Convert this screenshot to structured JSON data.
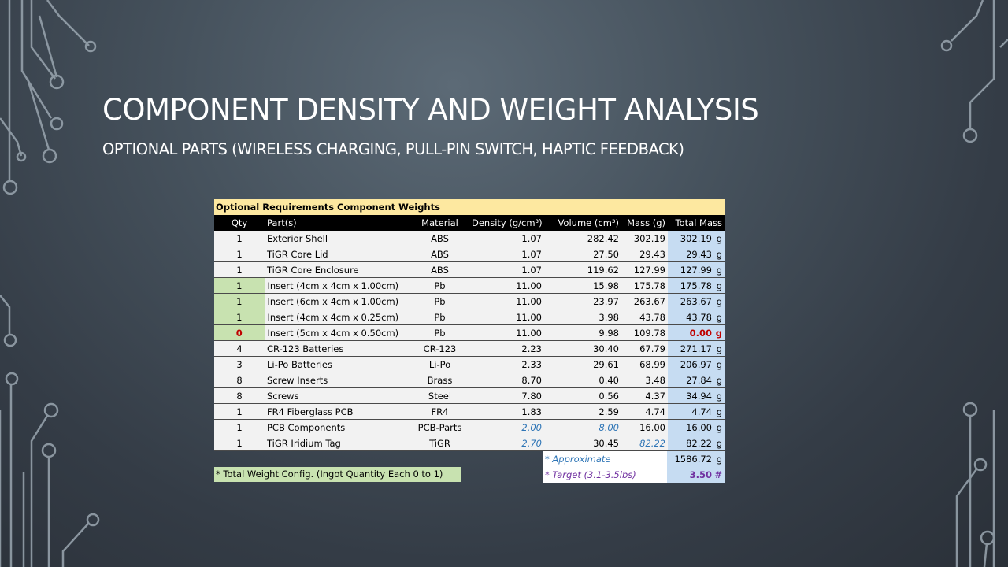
{
  "slide": {
    "title": "COMPONENT DENSITY AND WEIGHT ANALYSIS",
    "subtitle": "OPTIONAL PARTS (WIRELESS CHARGING, PULL-PIN SWITCH, HAPTIC FEEDBACK)"
  },
  "sheet": {
    "caption": "Optional Requirements Component Weights",
    "headers": [
      "Qty",
      "Part(s)",
      "Material",
      "Density (g/cm³)",
      "Volume (cm³)",
      "Mass (g)",
      "Total Mass"
    ],
    "rows": [
      {
        "qty": "1",
        "part": "Exterior Shell",
        "material": "ABS",
        "density": "1.07",
        "volume": "282.42",
        "mass": "302.19",
        "total": "302.19",
        "unit": "g"
      },
      {
        "qty": "1",
        "part": "TiGR Core Lid",
        "material": "ABS",
        "density": "1.07",
        "volume": "27.50",
        "mass": "29.43",
        "total": "29.43",
        "unit": "g"
      },
      {
        "qty": "1",
        "part": "TiGR Core Enclosure",
        "material": "ABS",
        "density": "1.07",
        "volume": "119.62",
        "mass": "127.99",
        "total": "127.99",
        "unit": "g"
      },
      {
        "qty": "1",
        "part": "Insert (4cm x 4cm  x 1.00cm)",
        "material": "Pb",
        "density": "11.00",
        "volume": "15.98",
        "mass": "175.78",
        "total": "175.78",
        "unit": "g"
      },
      {
        "qty": "1",
        "part": "Insert (6cm x 4cm  x 1.00cm)",
        "material": "Pb",
        "density": "11.00",
        "volume": "23.97",
        "mass": "263.67",
        "total": "263.67",
        "unit": "g"
      },
      {
        "qty": "1",
        "part": "Insert (4cm x 4cm  x 0.25cm)",
        "material": "Pb",
        "density": "11.00",
        "volume": "3.98",
        "mass": "43.78",
        "total": "43.78",
        "unit": "g"
      },
      {
        "qty": "0",
        "part": "Insert (5cm x 4cm  x 0.50cm)",
        "material": "Pb",
        "density": "11.00",
        "volume": "9.98",
        "mass": "109.78",
        "total": "0.00",
        "unit": "g"
      },
      {
        "qty": "4",
        "part": "CR-123 Batteries",
        "material": "CR-123",
        "density": "2.23",
        "volume": "30.40",
        "mass": "67.79",
        "total": "271.17",
        "unit": "g"
      },
      {
        "qty": "3",
        "part": "Li-Po Batteries",
        "material": "Li-Po",
        "density": "2.33",
        "volume": "29.61",
        "mass": "68.99",
        "total": "206.97",
        "unit": "g"
      },
      {
        "qty": "8",
        "part": "Screw Inserts",
        "material": "Brass",
        "density": "8.70",
        "volume": "0.40",
        "mass": "3.48",
        "total": "27.84",
        "unit": "g"
      },
      {
        "qty": "8",
        "part": "Screws",
        "material": "Steel",
        "density": "7.80",
        "volume": "0.56",
        "mass": "4.37",
        "total": "34.94",
        "unit": "g"
      },
      {
        "qty": "1",
        "part": "FR4 Fiberglass PCB",
        "material": "FR4",
        "density": "1.83",
        "volume": "2.59",
        "mass": "4.74",
        "total": "4.74",
        "unit": "g"
      },
      {
        "qty": "1",
        "part": "PCB Components",
        "material": "PCB-Parts",
        "density": "2.00",
        "volume": "8.00",
        "mass": "16.00",
        "total": "16.00",
        "unit": "g"
      },
      {
        "qty": "1",
        "part": "TiGR Iridium Tag",
        "material": "TiGR",
        "density": "2.70",
        "volume": "30.45",
        "mass": "82.22",
        "total": "82.22",
        "unit": "g"
      }
    ],
    "ingot_note": "* Total Weight  Config. (Ingot Quantity Each 0 to 1)",
    "approx_note": "* Approximate",
    "target_note": "* Target (3.1-3.5lbs)",
    "sum_total": "1586.72",
    "sum_unit": "g",
    "target_value": "3.50",
    "target_unit": "#"
  },
  "colors": {
    "caption_bg": "#fde8a0",
    "total_col_bg": "#c6dcf2",
    "ingot_qty_bg": "#c8e2b0",
    "zero_qty": "#c00000",
    "approx_text": "#2e75b6",
    "target_text": "#7030a0"
  }
}
